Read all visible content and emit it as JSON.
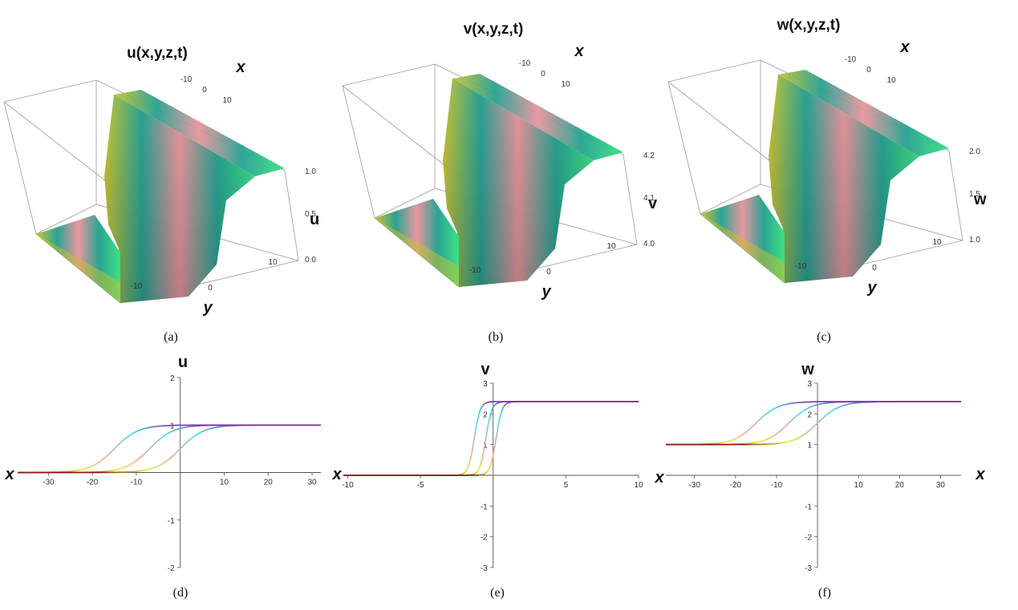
{
  "captions": [
    "(a)",
    "(b)",
    "(c)",
    "(d)",
    "(e)",
    "(f)"
  ],
  "colors": {
    "surface": [
      "#c7c12a",
      "#1e9f8e",
      "#e8919a",
      "#1e9f8e",
      "#34e07d"
    ],
    "curve_low": "#8b1a0e",
    "curve_mid": "#dff03a",
    "curve_mid2": "#f4a0a0",
    "curve_high_a": "#3be0f0",
    "curve_high_b": "#7b2ea8"
  },
  "chart_data": [
    {
      "type": "surface3d",
      "title": "u(x,y,z,t)",
      "xlabel": "x",
      "ylabel": "y",
      "zlabel": "u",
      "x_ticks": [
        "-10",
        "0",
        "10"
      ],
      "y_ticks": [
        "-10",
        "0",
        "10"
      ],
      "z_ticks": [
        "0.0",
        "0.5",
        "1.0"
      ],
      "zlim": [
        0,
        1
      ],
      "profile": {
        "y": [
          -15,
          -10,
          -5,
          0,
          5,
          10,
          15
        ],
        "z": [
          0.0,
          0.1,
          0.5,
          0.9,
          1.0,
          1.0,
          1.0
        ]
      }
    },
    {
      "type": "surface3d",
      "title": "v(x,y,z,t)",
      "xlabel": "x",
      "ylabel": "y",
      "zlabel": "v",
      "x_ticks": [
        "-10",
        "0",
        "10"
      ],
      "y_ticks": [
        "-10",
        "0",
        "10"
      ],
      "z_ticks": [
        "4.0",
        "4.1",
        "4.2"
      ],
      "zlim": [
        4.0,
        4.25
      ]
    },
    {
      "type": "surface3d",
      "title": "w(x,y,z,t)",
      "xlabel": "x",
      "ylabel": "y",
      "zlabel": "w",
      "x_ticks": [
        "-10",
        "0",
        "10"
      ],
      "y_ticks": [
        "-10",
        "0",
        "10"
      ],
      "z_ticks": [
        "1.0",
        "1.5",
        "2.0"
      ],
      "zlim": [
        1.0,
        2.3
      ]
    },
    {
      "type": "line",
      "xlabel": "x",
      "ylabel": "u",
      "xlim": [
        -37,
        32
      ],
      "ylim": [
        -2,
        2
      ],
      "x_ticks": [
        -30,
        -20,
        -10,
        10,
        20,
        30
      ],
      "y_ticks": [
        -2,
        -1,
        1,
        2
      ],
      "series": [
        {
          "center": -15,
          "low": 0,
          "high": 1,
          "width": 6
        },
        {
          "center": -7,
          "low": 0,
          "high": 1,
          "width": 6
        },
        {
          "center": 0,
          "low": 0,
          "high": 1,
          "width": 6
        }
      ]
    },
    {
      "type": "line",
      "xlabel": "x",
      "ylabel": "v",
      "xlim": [
        -10.3,
        10
      ],
      "ylim": [
        -3,
        3
      ],
      "x_ticks": [
        -10,
        -5,
        5,
        10
      ],
      "y_ticks": [
        -3,
        -2,
        -1,
        1,
        2,
        3
      ],
      "series": [
        {
          "center": -1.3,
          "low": 0,
          "high": 2.4,
          "width": 0.45
        },
        {
          "center": -0.5,
          "low": 0,
          "high": 2.4,
          "width": 0.45
        },
        {
          "center": 0.2,
          "low": 0,
          "high": 2.4,
          "width": 0.45
        }
      ]
    },
    {
      "type": "line",
      "xlabel": "x",
      "ylabel": "w",
      "xlim": [
        -37,
        35
      ],
      "ylim": [
        -3,
        3
      ],
      "x_ticks": [
        -30,
        -20,
        -10,
        10,
        20,
        30
      ],
      "y_ticks": [
        -3,
        -2,
        -1,
        1,
        2,
        3
      ],
      "series": [
        {
          "center": -15,
          "low": 1,
          "high": 2.4,
          "width": 6
        },
        {
          "center": -7,
          "low": 1,
          "high": 2.4,
          "width": 6
        },
        {
          "center": 0,
          "low": 1,
          "high": 2.4,
          "width": 6
        }
      ]
    }
  ]
}
